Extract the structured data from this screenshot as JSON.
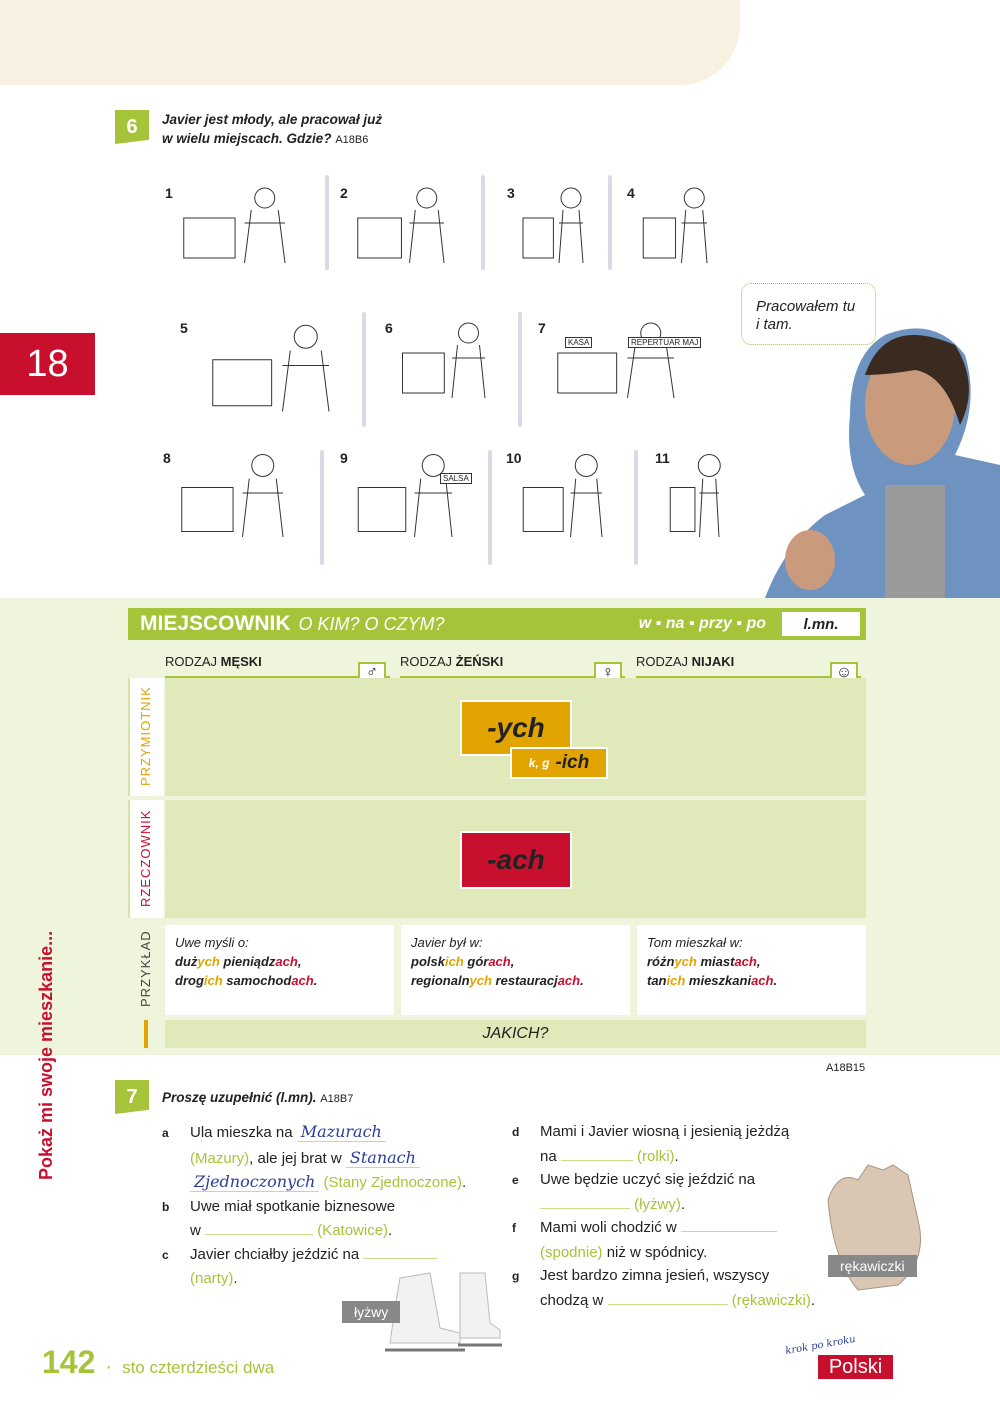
{
  "chapter_number": "18",
  "side_title": "Pokaż mi swoje mieszkanie...",
  "exercise6": {
    "number": "6",
    "instruction_line1": "Javier jest młody, ale pracował już",
    "instruction_line2": "w wielu miejscach. Gdzie?",
    "code": "A18B6",
    "pictures": [
      "1",
      "2",
      "3",
      "4",
      "5",
      "6",
      "7",
      "8",
      "9",
      "10",
      "11"
    ],
    "picture_texts": {
      "kasa": "KASA",
      "repertuar": "REPERTUAR MAJ",
      "salsa": "SALSA"
    },
    "speech_bubble": "Pracowałem tu i tam."
  },
  "grammar": {
    "title": "MIEJSCOWNIK",
    "subtitle": "O KIM? O CZYM?",
    "prepositions": [
      "w",
      "na",
      "przy",
      "po"
    ],
    "number_label": "l.mn.",
    "columns": [
      {
        "prefix": "RODZAJ ",
        "bold": "MĘSKI"
      },
      {
        "prefix": "RODZAJ ",
        "bold": "ŻEŃSKI"
      },
      {
        "prefix": "RODZAJ ",
        "bold": "NIJAKI"
      }
    ],
    "rows": {
      "adjective": "PRZYMIOTNIK",
      "noun": "RZECZOWNIK",
      "example": "PRZYKŁAD"
    },
    "adj_ending": "-ych",
    "adj_ending_alt_prefix": "k, g",
    "adj_ending_alt": "-ich",
    "noun_ending": "-ach",
    "examples": [
      {
        "intro": "Uwe myśli o:",
        "l1": [
          [
            "duż",
            "b"
          ],
          [
            "ych",
            "y"
          ],
          [
            " pieniądz",
            "b"
          ],
          [
            "ach",
            "r"
          ],
          [
            ",",
            ""
          ]
        ],
        "l2": [
          [
            "drog",
            "b"
          ],
          [
            "ich",
            "y"
          ],
          [
            " samochod",
            "b"
          ],
          [
            "ach",
            "r"
          ],
          [
            ".",
            ""
          ]
        ]
      },
      {
        "intro": "Javier był w:",
        "l1": [
          [
            "polsk",
            "b"
          ],
          [
            "ich",
            "y"
          ],
          [
            " gór",
            "b"
          ],
          [
            "ach",
            "r"
          ],
          [
            ",",
            ""
          ]
        ],
        "l2": [
          [
            "regionaln",
            "b"
          ],
          [
            "ych",
            "y"
          ],
          [
            " restauracj",
            "b"
          ],
          [
            "ach",
            "r"
          ],
          [
            ".",
            ""
          ]
        ]
      },
      {
        "intro": "Tom mieszkał w:",
        "l1": [
          [
            "różn",
            "b"
          ],
          [
            "ych",
            "y"
          ],
          [
            " miast",
            "b"
          ],
          [
            "ach",
            "r"
          ],
          [
            ",",
            ""
          ]
        ],
        "l2": [
          [
            "tan",
            "b"
          ],
          [
            "ich",
            "y"
          ],
          [
            " mieszkani",
            "b"
          ],
          [
            "ach",
            "r"
          ],
          [
            ".",
            ""
          ]
        ]
      }
    ],
    "question": "JAKICH?",
    "code": "A18B15"
  },
  "exercise7": {
    "number": "7",
    "instruction": "Proszę uzupełnić (l.mn).",
    "code": "A18B7",
    "a": {
      "letter": "a",
      "t1": "Ula mieszka na",
      "ans1": "Mazurach",
      "h1": "(Mazury)",
      "t2": ", ale jej brat w",
      "ans2": "Stanach",
      "ans3": "Zjednoczonych",
      "h2": "(Stany Zjednoczone)",
      "end": "."
    },
    "b": {
      "letter": "b",
      "t1": "Uwe miał spotkanie biznesowe",
      "t2": "w",
      "h": "(Katowice)",
      "end": "."
    },
    "c": {
      "letter": "c",
      "t1": "Javier chciałby jeździć na",
      "h": "(narty)",
      "end": "."
    },
    "d": {
      "letter": "d",
      "t1": "Mami i Javier wiosną i jesienią jeżdżą",
      "t2": "na",
      "h": "(rolki)",
      "end": "."
    },
    "e": {
      "letter": "e",
      "t1": "Uwe będzie uczyć się jeździć na",
      "h": "(łyżwy)",
      "end": "."
    },
    "f": {
      "letter": "f",
      "t1": "Mami woli chodzić w",
      "h": "(spodnie)",
      "t2": " niż w spódnicy."
    },
    "g": {
      "letter": "g",
      "t1": "Jest bardzo zimna jesień, wszyscy",
      "t2": "chodzą w",
      "h": "(rękawiczki)",
      "end": "."
    },
    "tag_skates": "łyżwy",
    "tag_gloves": "rękawiczki"
  },
  "footer": {
    "page_number": "142",
    "page_words": "sto czterdzieści dwa",
    "logo_script": "krok po kroku",
    "logo": "Polski"
  },
  "colors": {
    "green": "#a6c43a",
    "red": "#c8102e",
    "yellow": "#e2a400"
  }
}
